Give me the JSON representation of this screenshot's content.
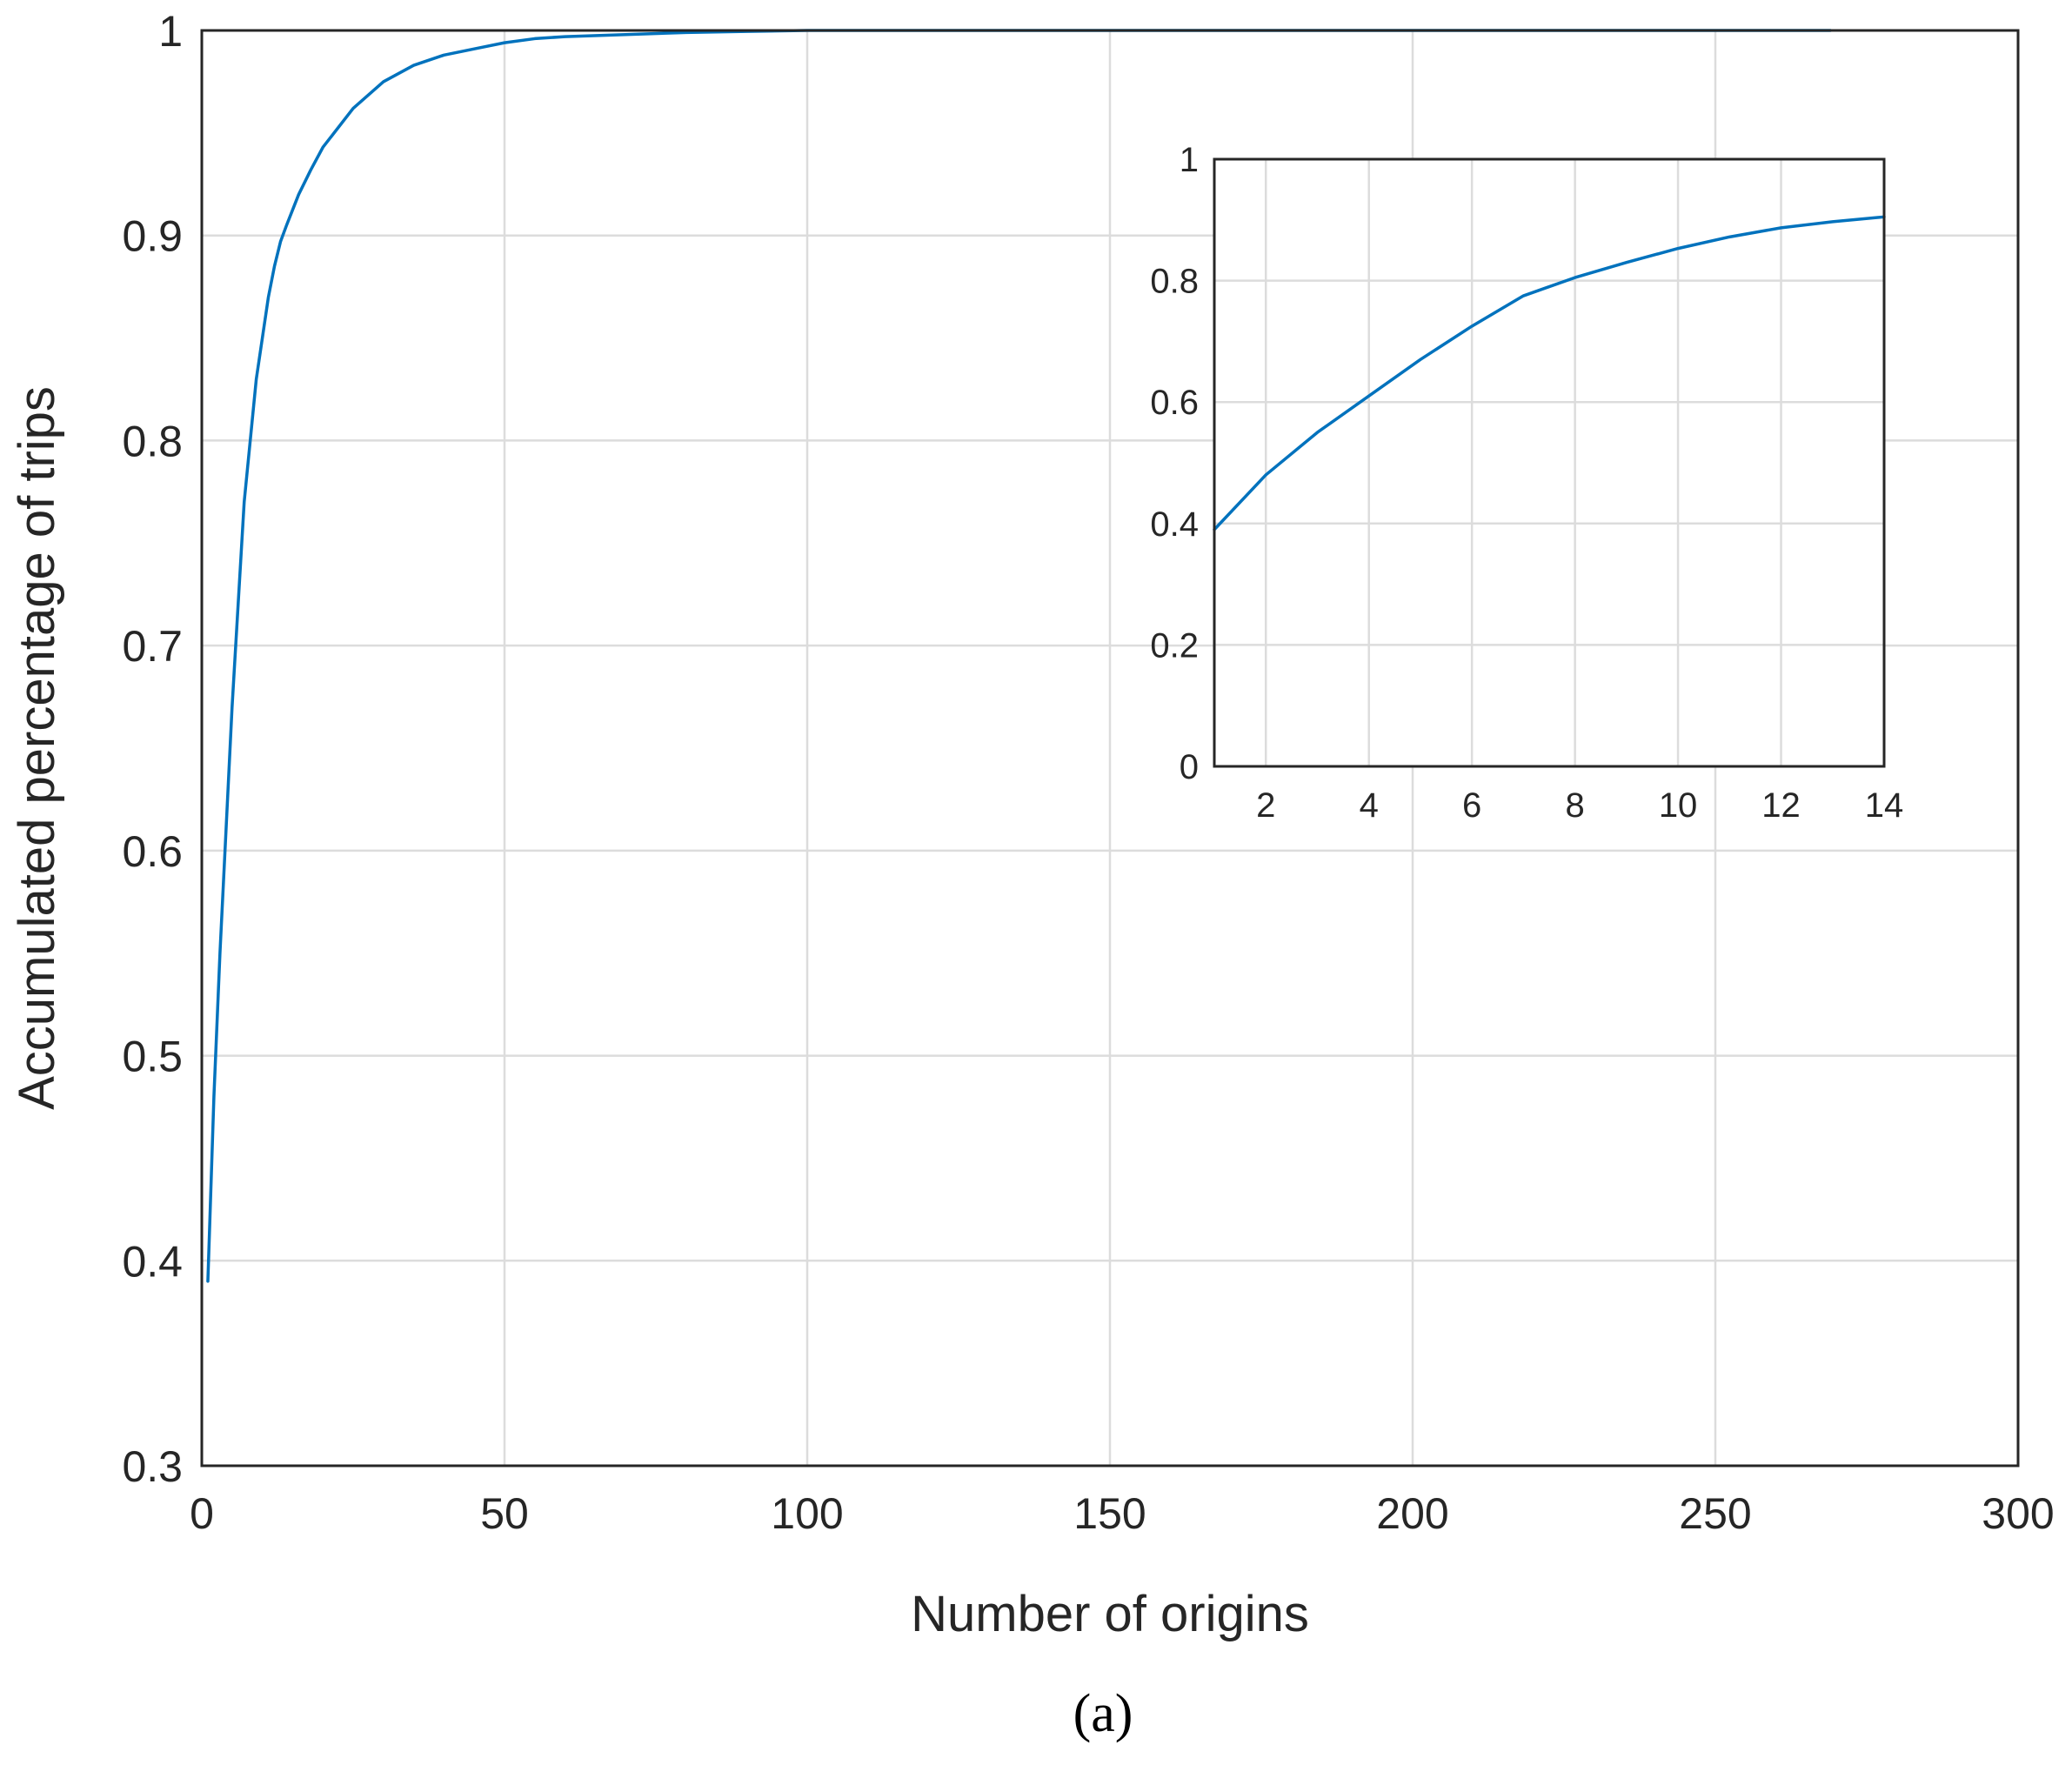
{
  "chart_data": [
    {
      "type": "line",
      "title": "",
      "xlabel": "Number of origins",
      "ylabel": "Accumulated percentage of trips",
      "xlim": [
        0,
        300
      ],
      "ylim": [
        0.3,
        1
      ],
      "xticks": [
        0,
        50,
        100,
        150,
        200,
        250,
        300
      ],
      "yticks": [
        0.3,
        0.4,
        0.5,
        0.6,
        0.7,
        0.8,
        0.9,
        1
      ],
      "xtick_labels": [
        "0",
        "50",
        "100",
        "150",
        "200",
        "250",
        "300"
      ],
      "ytick_labels": [
        "0.3",
        "0.4",
        "0.5",
        "0.6",
        "0.7",
        "0.8",
        "0.9",
        "1"
      ],
      "grid": true,
      "series": [
        {
          "color": "#0072bd",
          "x": [
            1,
            2,
            3,
            4,
            5,
            6,
            7,
            8,
            9,
            10,
            11,
            12,
            13,
            14,
            16,
            18,
            20,
            25,
            30,
            35,
            40,
            45,
            50,
            55,
            60,
            70,
            80,
            90,
            100,
            150,
            200,
            269
          ],
          "y": [
            0.39,
            0.48,
            0.55,
            0.61,
            0.67,
            0.72,
            0.77,
            0.8,
            0.83,
            0.85,
            0.87,
            0.885,
            0.897,
            0.905,
            0.92,
            0.932,
            0.943,
            0.962,
            0.975,
            0.983,
            0.988,
            0.991,
            0.994,
            0.996,
            0.997,
            0.998,
            0.999,
            0.9995,
            1,
            1,
            1,
            1
          ]
        }
      ]
    },
    {
      "type": "line",
      "title": "",
      "xlabel": "",
      "ylabel": "",
      "xlim": [
        1,
        14
      ],
      "ylim": [
        0,
        1
      ],
      "xticks": [
        2,
        4,
        6,
        8,
        10,
        12,
        14
      ],
      "yticks": [
        0,
        0.2,
        0.4,
        0.6,
        0.8,
        1
      ],
      "xtick_labels": [
        "2",
        "4",
        "6",
        "8",
        "10",
        "12",
        "14"
      ],
      "ytick_labels": [
        "0",
        "0.2",
        "0.4",
        "0.6",
        "0.8",
        "1"
      ],
      "grid": true,
      "series": [
        {
          "color": "#0072bd",
          "x": [
            1,
            2,
            3,
            4,
            5,
            6,
            7,
            8,
            9,
            10,
            11,
            12,
            13,
            14
          ],
          "y": [
            0.39,
            0.48,
            0.55,
            0.61,
            0.67,
            0.725,
            0.775,
            0.805,
            0.83,
            0.853,
            0.872,
            0.887,
            0.897,
            0.905
          ]
        }
      ]
    }
  ],
  "caption": "(a)"
}
